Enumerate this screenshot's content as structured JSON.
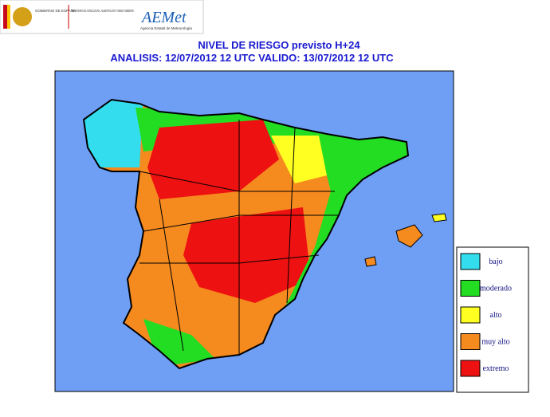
{
  "header": {
    "government": "GOBIERNO DE ESPAÑA",
    "ministry": "MINISTERIO DE AGRICULTURA, ALIMENTACIÓN Y MEDIO AMBIENTE",
    "agency_logo": "AEMet",
    "agency_name": "Agencia Estatal de Meteorología"
  },
  "map": {
    "title": "NIVEL DE RIESGO previsto H+24",
    "subtitle": "ANALISIS: 12/07/2012 12 UTC  VALIDO: 13/07/2012 12 UTC",
    "legend": [
      {
        "label": "bajo",
        "color": "#33ddee"
      },
      {
        "label": "moderado",
        "color": "#22dd22"
      },
      {
        "label": "alto",
        "color": "#ffff22"
      },
      {
        "label": "muy alto",
        "color": "#f58a1f"
      },
      {
        "label": "extremo",
        "color": "#ee1111"
      }
    ]
  }
}
